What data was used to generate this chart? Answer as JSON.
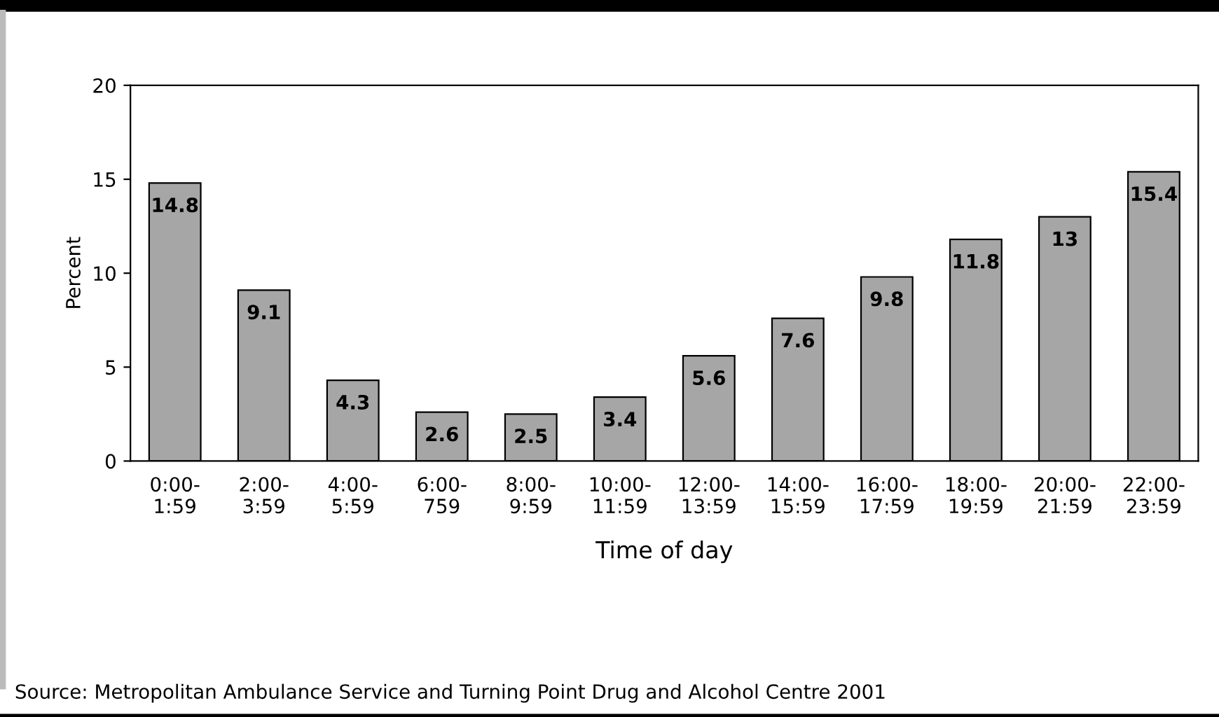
{
  "chart_data": {
    "type": "bar",
    "xlabel": "Time of day",
    "ylabel": "Percent",
    "categories": [
      "0:00-1:59",
      "2:00-3:59",
      "4:00-5:59",
      "6:00-759",
      "8:00-9:59",
      "10:00-11:59",
      "12:00-13:59",
      "14:00-15:59",
      "16:00-17:59",
      "18:00-19:59",
      "20:00-21:59",
      "22:00-23:59"
    ],
    "values": [
      14.8,
      9.1,
      4.3,
      2.6,
      2.5,
      3.4,
      5.6,
      7.6,
      9.8,
      11.8,
      13,
      15.4
    ],
    "color": "#a6a6a6",
    "ylim": [
      0,
      20
    ],
    "yticks": [
      0,
      5,
      10,
      15,
      20
    ],
    "grid": false,
    "data_labels": true,
    "annotations": [
      "Source: Metropolitan Ambulance Service and Turning Point Drug and Alcohol Centre 2001"
    ]
  }
}
